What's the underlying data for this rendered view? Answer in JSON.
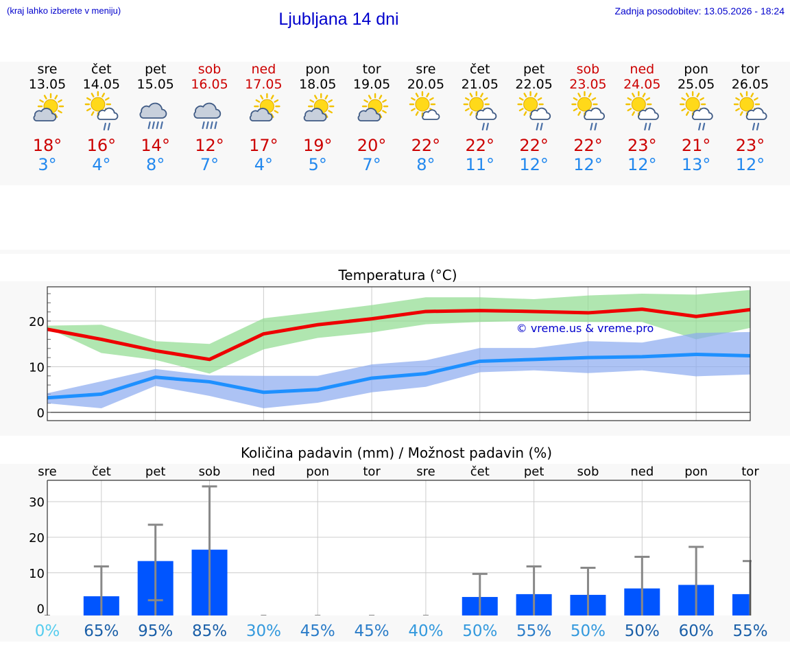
{
  "header": {
    "menu_hint": "(kraj lahko izberete v meniju)",
    "title": "Ljubljana 14 dni",
    "last_update": "Zadnja posodobitev: 13.05.2026 - 18:24"
  },
  "colors": {
    "weekend": "#cc0000",
    "max_temp": "#cc0000",
    "min_temp": "#2288ee",
    "link": "#0000cc",
    "bar": "#0055ff"
  },
  "days": [
    {
      "name": "sre",
      "date": "13.05",
      "weekend": false,
      "icon": "sun-cloud-icon",
      "tmax": "18°",
      "tmin": "3°"
    },
    {
      "name": "čet",
      "date": "14.05",
      "weekend": false,
      "icon": "sun-cloud-rain-icon",
      "tmax": "16°",
      "tmin": "4°"
    },
    {
      "name": "pet",
      "date": "15.05",
      "weekend": false,
      "icon": "rain-cloud-icon",
      "tmax": "14°",
      "tmin": "8°"
    },
    {
      "name": "sob",
      "date": "16.05",
      "weekend": true,
      "icon": "rain-cloud-icon",
      "tmax": "12°",
      "tmin": "7°"
    },
    {
      "name": "ned",
      "date": "17.05",
      "weekend": true,
      "icon": "sun-cloud-icon",
      "tmax": "17°",
      "tmin": "4°"
    },
    {
      "name": "pon",
      "date": "18.05",
      "weekend": false,
      "icon": "sun-cloud-icon",
      "tmax": "19°",
      "tmin": "5°"
    },
    {
      "name": "tor",
      "date": "19.05",
      "weekend": false,
      "icon": "sun-cloud-icon",
      "tmax": "20°",
      "tmin": "7°"
    },
    {
      "name": "sre",
      "date": "20.05",
      "weekend": false,
      "icon": "sun-small-cloud-icon",
      "tmax": "22°",
      "tmin": "8°"
    },
    {
      "name": "čet",
      "date": "21.05",
      "weekend": false,
      "icon": "sun-cloud-rain-icon",
      "tmax": "22°",
      "tmin": "11°"
    },
    {
      "name": "pet",
      "date": "22.05",
      "weekend": false,
      "icon": "sun-cloud-rain-icon",
      "tmax": "22°",
      "tmin": "12°"
    },
    {
      "name": "sob",
      "date": "23.05",
      "weekend": true,
      "icon": "sun-cloud-rain-icon",
      "tmax": "22°",
      "tmin": "12°"
    },
    {
      "name": "ned",
      "date": "24.05",
      "weekend": true,
      "icon": "sun-cloud-rain-icon",
      "tmax": "23°",
      "tmin": "12°"
    },
    {
      "name": "pon",
      "date": "25.05",
      "weekend": false,
      "icon": "sun-cloud-rain-icon",
      "tmax": "21°",
      "tmin": "13°"
    },
    {
      "name": "tor",
      "date": "26.05",
      "weekend": false,
      "icon": "sun-cloud-rain-icon",
      "tmax": "23°",
      "tmin": "12°"
    }
  ],
  "chart_data": [
    {
      "type": "line",
      "title": "Temperatura (°C)",
      "watermark": "© vreme.us & vreme.pro",
      "categories": [
        "13.05",
        "14.05",
        "15.05",
        "16.05",
        "17.05",
        "18.05",
        "19.05",
        "20.05",
        "21.05",
        "22.05",
        "23.05",
        "24.05",
        "25.05",
        "26.05"
      ],
      "yticks": [
        0,
        10,
        20
      ],
      "ylim": [
        -1.8,
        27.5
      ],
      "grid": true,
      "series": [
        {
          "role": "max",
          "color": "#ee0000",
          "values": [
            18.2,
            16.0,
            13.5,
            11.6,
            17.2,
            19.2,
            20.5,
            22.1,
            22.3,
            22.1,
            21.8,
            22.6,
            21.0,
            22.5
          ],
          "band_low": [
            18.5,
            13.0,
            11.5,
            8.5,
            13.8,
            16.3,
            17.5,
            19.3,
            19.8,
            20.0,
            19.8,
            19.8,
            16.0,
            18.5
          ],
          "band_high": [
            19.0,
            19.2,
            15.6,
            15.0,
            20.6,
            22.0,
            23.5,
            25.2,
            25.2,
            24.8,
            25.6,
            26.0,
            25.8,
            26.8
          ]
        },
        {
          "role": "min",
          "color": "#1e90ff",
          "values": [
            3.2,
            4.0,
            7.7,
            6.7,
            4.4,
            5.0,
            7.5,
            8.5,
            11.2,
            11.6,
            12.0,
            12.2,
            12.7,
            12.4
          ],
          "band_low": [
            2.0,
            0.9,
            5.8,
            3.6,
            0.9,
            2.1,
            4.4,
            5.6,
            8.8,
            9.2,
            8.6,
            9.2,
            7.9,
            8.3
          ],
          "band_high": [
            4.2,
            6.8,
            9.5,
            8.1,
            8.0,
            8.0,
            10.5,
            11.4,
            14.1,
            14.1,
            15.6,
            15.3,
            17.4,
            17.6
          ]
        }
      ]
    },
    {
      "type": "bar",
      "title": "Količina padavin (mm) / Možnost padavin (%)",
      "categories": [
        "sre",
        "čet",
        "pet",
        "sob",
        "ned",
        "pon",
        "tor",
        "sre",
        "čet",
        "pet",
        "sob",
        "ned",
        "pon",
        "tor"
      ],
      "yticks": [
        0,
        10,
        20,
        30
      ],
      "ylim": [
        -2,
        36
      ],
      "grid": true,
      "values": [
        0,
        3.4,
        13.3,
        16.5,
        0,
        0,
        0,
        0,
        3.2,
        4.0,
        3.8,
        5.6,
        6.6,
        4.0
      ],
      "error_high": [
        0,
        11.8,
        23.5,
        34.3,
        0,
        0,
        0,
        0,
        9.7,
        11.8,
        11.4,
        14.5,
        17.3,
        13.3
      ],
      "error_low": [
        0,
        0,
        2.3,
        0,
        0,
        0,
        0,
        0,
        0,
        0,
        0,
        0,
        0,
        0
      ],
      "probability": [
        "0%",
        "65%",
        "95%",
        "85%",
        "30%",
        "45%",
        "45%",
        "40%",
        "50%",
        "55%",
        "50%",
        "50%",
        "60%",
        "55%"
      ],
      "probability_colors": [
        "#55ccee",
        "#1a5fa8",
        "#1a5fa8",
        "#1a5fa8",
        "#3399dd",
        "#2a7cc8",
        "#2a7cc8",
        "#3399dd",
        "#3399dd",
        "#2a7cc8",
        "#3399dd",
        "#1a5fa8",
        "#1a5fa8",
        "#1a5fa8"
      ]
    }
  ]
}
